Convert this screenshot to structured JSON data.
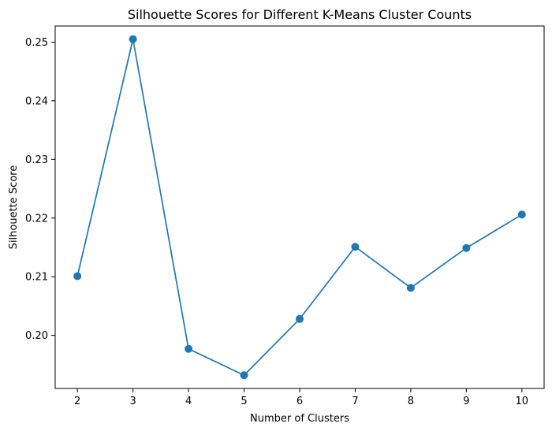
{
  "chart_data": {
    "type": "line",
    "title": "Silhouette Scores for Different K-Means Cluster Counts",
    "xlabel": "Number of Clusters",
    "ylabel": "Silhouette Score",
    "x": [
      2,
      3,
      4,
      5,
      6,
      7,
      8,
      9,
      10
    ],
    "series": [
      {
        "values": [
          0.2101,
          0.2505,
          0.1977,
          0.1932,
          0.2028,
          0.2151,
          0.2081,
          0.2149,
          0.2206
        ],
        "color": "#1f77b4",
        "marker": "circle"
      }
    ],
    "xticks": [
      "2",
      "3",
      "4",
      "5",
      "6",
      "7",
      "8",
      "9",
      "10"
    ],
    "yticks": [
      "0.20",
      "0.21",
      "0.22",
      "0.23",
      "0.24",
      "0.25"
    ],
    "xlim": [
      1.6,
      10.4
    ],
    "ylim": [
      0.19095,
      0.25275
    ],
    "grid": false,
    "legend": "none"
  }
}
